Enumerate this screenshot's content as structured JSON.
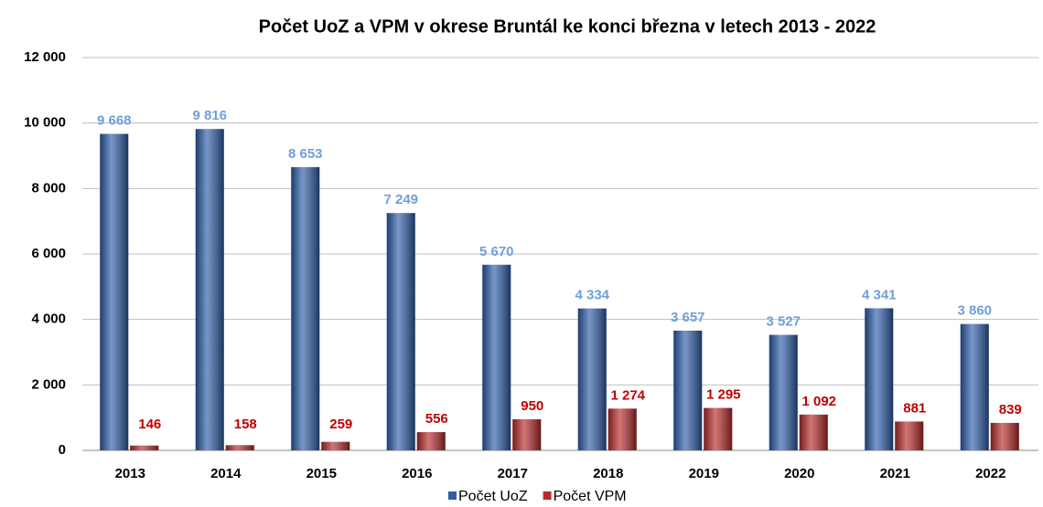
{
  "chart_data": {
    "type": "bar",
    "title": "Počet UoZ a VPM v okrese Bruntál ke konci března v letech 2013 - 2022",
    "categories": [
      "2013",
      "2014",
      "2015",
      "2016",
      "2017",
      "2018",
      "2019",
      "2020",
      "2021",
      "2022"
    ],
    "series": [
      {
        "name": "Počet UoZ",
        "color": "#2e5eaa",
        "label_color": "#6f9fdc",
        "values": [
          9668,
          9816,
          8653,
          7249,
          5670,
          4334,
          3657,
          3527,
          4341,
          3860
        ],
        "value_labels": [
          "9 668",
          "9 816",
          "8 653",
          "7 249",
          "5 670",
          "4 334",
          "3 657",
          "3 527",
          "4 341",
          "3 860"
        ]
      },
      {
        "name": "Počet VPM",
        "color": "#b82a2a",
        "label_color": "#c00000",
        "values": [
          146,
          158,
          259,
          556,
          950,
          1274,
          1295,
          1092,
          881,
          839
        ],
        "value_labels": [
          "146",
          "158",
          "259",
          "556",
          "950",
          "1 274",
          "1 295",
          "1 092",
          "881",
          "839"
        ]
      }
    ],
    "ylim": [
      0,
      12000
    ],
    "yticks": [
      0,
      {
        "value": 2000,
        "label": "2 000"
      },
      {
        "value": 4000,
        "label": "4 000"
      },
      {
        "value": 6000,
        "label": "6 000"
      },
      {
        "value": 8000,
        "label": "8 000"
      },
      {
        "value": 10000,
        "label": "10 000"
      },
      {
        "value": 12000,
        "label": "12 000"
      }
    ],
    "grid": true,
    "legend": "bottom"
  }
}
